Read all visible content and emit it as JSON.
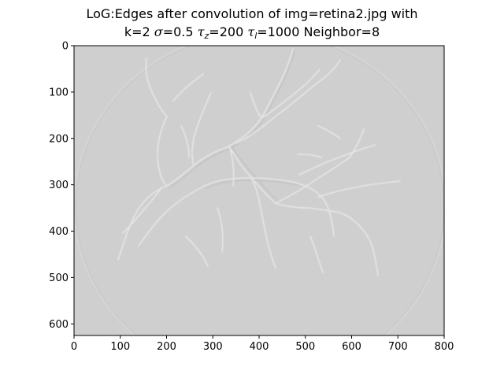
{
  "figure": {
    "title_prefix": "LoG:Edges after convolution of img=retina2.jpg with",
    "line2": {
      "k_text": "k=2 ",
      "sigma_symbol": "σ",
      "sigma_text": "=0.5 ",
      "tau_symbol": "τ",
      "tau_z_sub": "z",
      "tau_z_text": "=200 ",
      "tau_l_sub": "l",
      "tau_l_text": "=1000 Neighbor=8"
    }
  },
  "chart_data": {
    "type": "image",
    "xlim": [
      0,
      800
    ],
    "ylim": [
      625,
      0
    ],
    "x_ticks": [
      "0",
      "100",
      "200",
      "300",
      "400",
      "500",
      "600",
      "700",
      "800"
    ],
    "y_ticks": [
      "0",
      "100",
      "200",
      "300",
      "400",
      "500",
      "600"
    ],
    "image_background": "#cfcfcf",
    "vessel_light": "#e6e6e6",
    "vessel_dark": "#bdbdbd"
  }
}
